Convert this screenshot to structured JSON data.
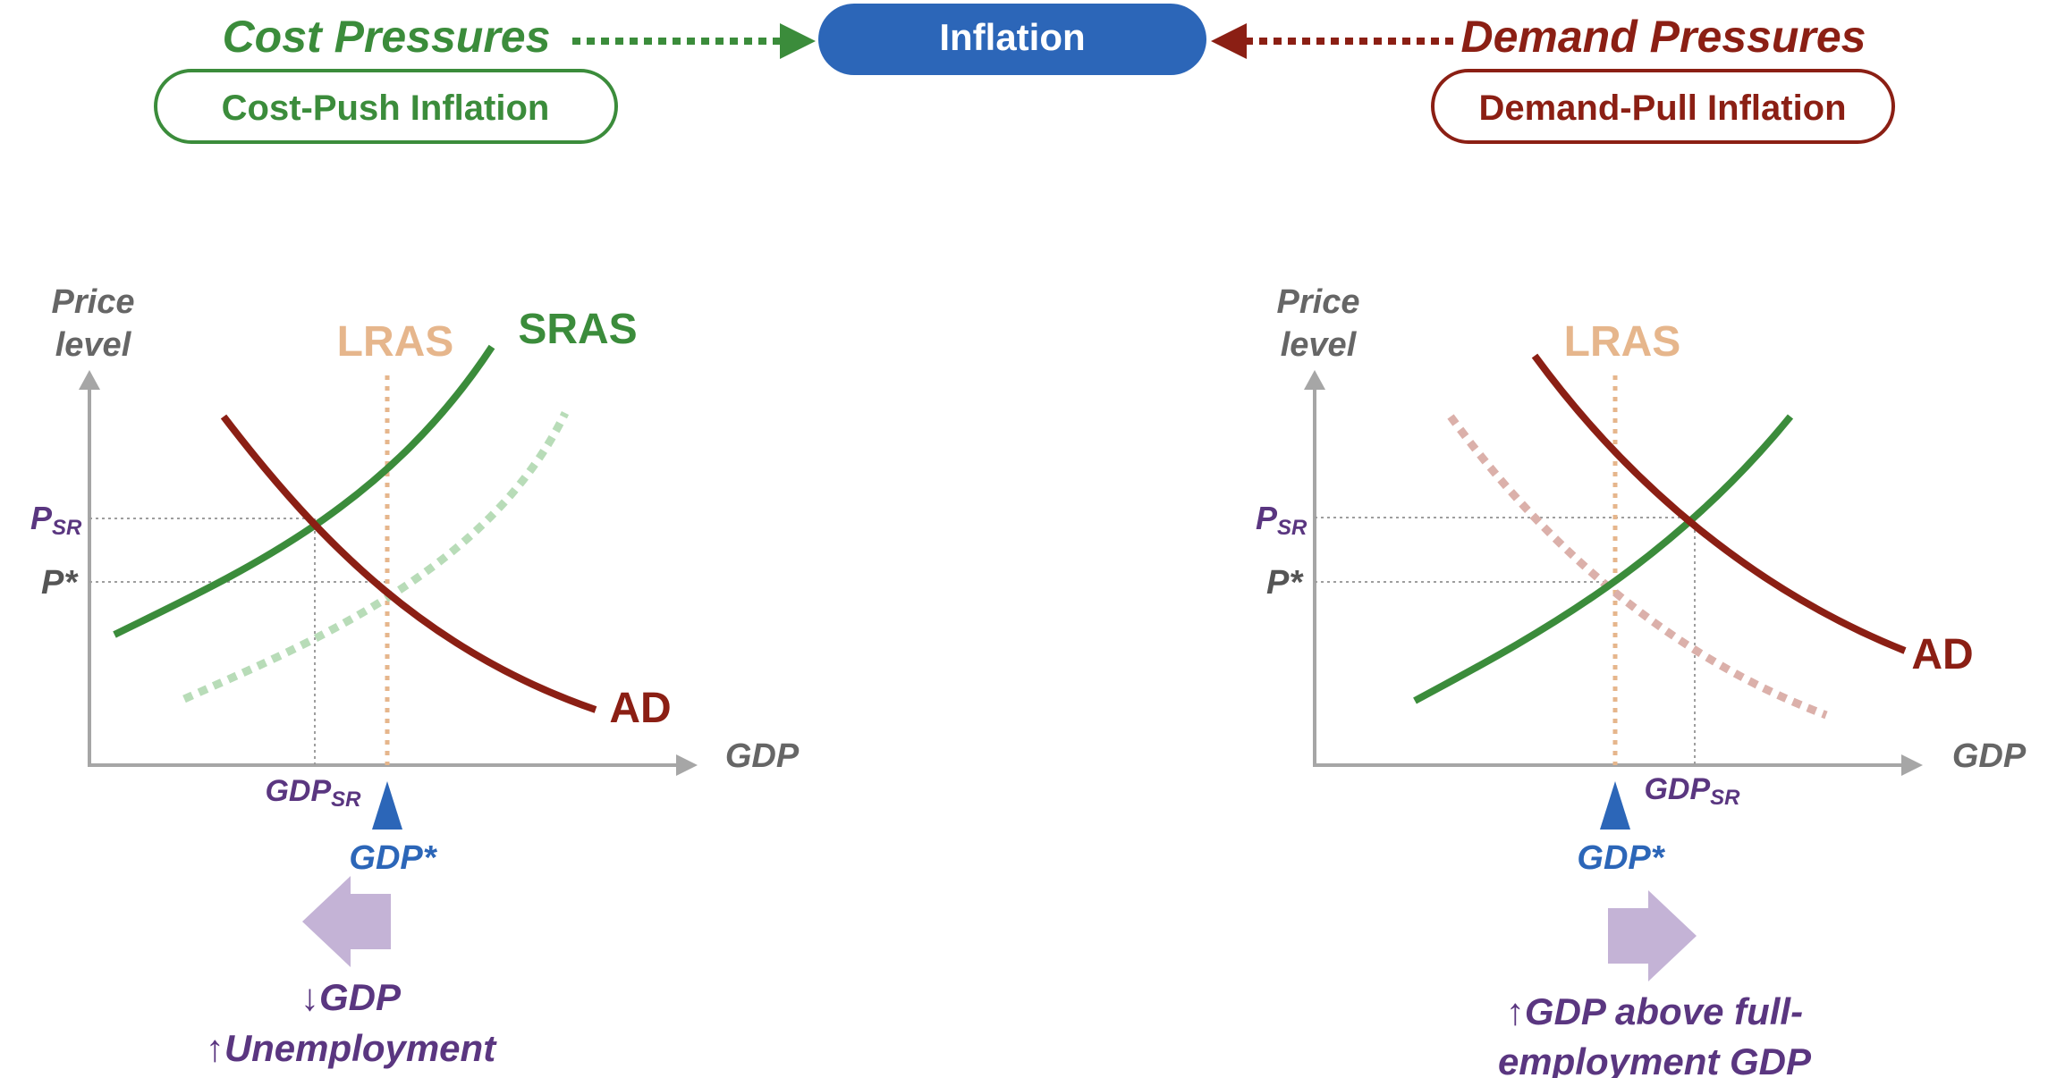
{
  "header": {
    "center_pill": "Inflation",
    "cost_pressures": "Cost Pressures",
    "demand_pressures": "Demand Pressures",
    "cost_push_pill": "Cost-Push Inflation",
    "demand_pull_pill": "Demand-Pull Inflation"
  },
  "left_panel": {
    "y_axis_label_line1": "Price",
    "y_axis_label_line2": "level",
    "x_axis_label": "GDP",
    "lras_label": "LRAS",
    "sras_label": "SRAS",
    "ad_label": "AD",
    "p_sr_main": "P",
    "p_sr_sub": "SR",
    "p_star": "P*",
    "gdp_sr_main": "GDP",
    "gdp_sr_sub": "SR",
    "gdp_star": "GDP*",
    "outcome_line1": "↓GDP",
    "outcome_line2": "↑Unemployment"
  },
  "right_panel": {
    "y_axis_label_line1": "Price",
    "y_axis_label_line2": "level",
    "x_axis_label": "GDP",
    "lras_label": "LRAS",
    "ad_label": "AD",
    "p_sr_main": "P",
    "p_sr_sub": "SR",
    "p_star": "P*",
    "gdp_sr_main": "GDP",
    "gdp_sr_sub": "SR",
    "gdp_star": "GDP*",
    "outcome_line1": "↑GDP above full-",
    "outcome_line2": "employment GDP"
  },
  "colors": {
    "green": "#3b8c3b",
    "green_faded": "#b8dcb8",
    "dark_red": "#8b1f14",
    "red_faded": "#dbb0aa",
    "lras": "#e6b68c",
    "blue": "#2c66b8",
    "purple": "#5a3680",
    "axis": "#a6a6a6",
    "arrow_fill": "#c4b3d6"
  }
}
